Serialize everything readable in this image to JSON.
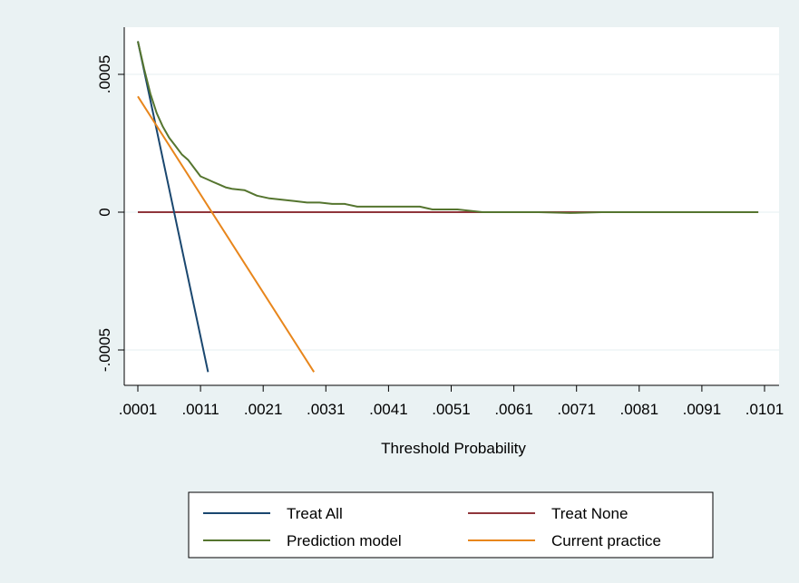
{
  "chart_data": {
    "type": "line",
    "title": "",
    "xlabel": "Threshold Probability",
    "ylabel": "",
    "xlim": [
      0.0001,
      0.0101
    ],
    "ylim": [
      -0.0006,
      0.00062
    ],
    "x_ticks": [
      0.0001,
      0.0011,
      0.0021,
      0.0031,
      0.0041,
      0.0051,
      0.0061,
      0.0071,
      0.0081,
      0.0091,
      0.0101
    ],
    "x_tick_labels": [
      ".0001",
      ".0011",
      ".0021",
      ".0031",
      ".0041",
      ".0051",
      ".0061",
      ".0071",
      ".0081",
      ".0091",
      ".0101"
    ],
    "y_ticks": [
      -0.0005,
      0,
      0.0005
    ],
    "y_tick_labels": [
      "-.0005",
      "0",
      ".0005"
    ],
    "grid": true,
    "legend_position": "bottom",
    "series": [
      {
        "name": "Treat All",
        "color": "#1a476f",
        "x": [
          0.0001,
          0.00122
        ],
        "y": [
          0.00062,
          -0.00058
        ]
      },
      {
        "name": "Treat None",
        "color": "#90353b",
        "x": [
          0.0001,
          0.01
        ],
        "y": [
          0,
          0
        ]
      },
      {
        "name": "Prediction model",
        "color": "#55752f",
        "x": [
          0.0001,
          0.0002,
          0.0003,
          0.0004,
          0.0005,
          0.0006,
          0.0007,
          0.0008,
          0.0009,
          0.001,
          0.0011,
          0.0012,
          0.0013,
          0.0014,
          0.0015,
          0.0016,
          0.0018,
          0.002,
          0.0022,
          0.0024,
          0.0026,
          0.0028,
          0.003,
          0.0032,
          0.0034,
          0.0036,
          0.0038,
          0.004,
          0.0042,
          0.0044,
          0.0046,
          0.0048,
          0.005,
          0.0052,
          0.0054,
          0.0056,
          0.006,
          0.0065,
          0.007,
          0.0075,
          0.008,
          0.0085,
          0.009,
          0.0095,
          0.01
        ],
        "y": [
          0.00062,
          0.00052,
          0.00043,
          0.00036,
          0.00031,
          0.00027,
          0.00024,
          0.00021,
          0.00019,
          0.00016,
          0.00013,
          0.00012,
          0.00011,
          0.0001,
          9e-05,
          8.5e-05,
          8e-05,
          6e-05,
          5e-05,
          4.5e-05,
          4e-05,
          3.5e-05,
          3.5e-05,
          3e-05,
          3e-05,
          2e-05,
          2e-05,
          2e-05,
          2e-05,
          2e-05,
          2e-05,
          1e-05,
          1e-05,
          1e-05,
          5e-06,
          0,
          0,
          0,
          -3e-06,
          0,
          0,
          0,
          0,
          0,
          0
        ]
      },
      {
        "name": "Current practice",
        "color": "#e8861c",
        "x": [
          0.0001,
          0.00291
        ],
        "y": [
          0.00042,
          -0.00058
        ]
      }
    ]
  }
}
